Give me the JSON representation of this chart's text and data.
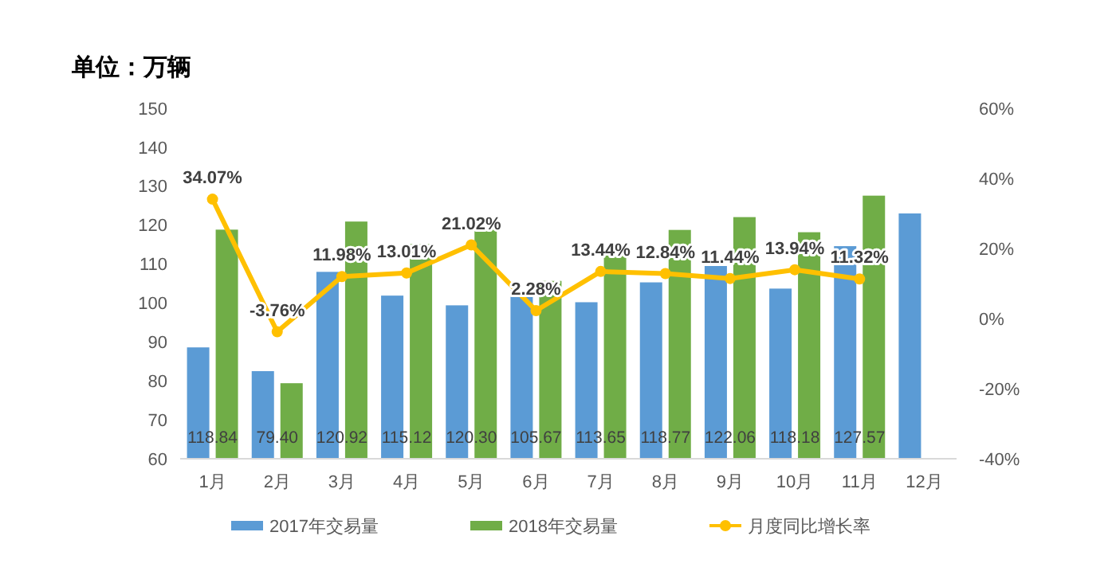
{
  "chart_data": {
    "type": "bar",
    "title": "单位：万辆",
    "categories": [
      "1月",
      "2月",
      "3月",
      "4月",
      "5月",
      "6月",
      "7月",
      "8月",
      "9月",
      "10月",
      "11月",
      "12月"
    ],
    "series": [
      {
        "name": "2017年交易量",
        "color": "#5b9bd5",
        "values": [
          88.6,
          82.5,
          108,
          101.9,
          99.4,
          103.3,
          100.2,
          105.3,
          109.5,
          103.7,
          114.6,
          123
        ]
      },
      {
        "name": "2018年交易量",
        "color": "#70ad47",
        "values": [
          118.84,
          79.4,
          120.92,
          115.12,
          120.3,
          105.67,
          113.65,
          118.77,
          122.06,
          118.18,
          127.57,
          null
        ],
        "value_labels": [
          "118.84",
          "79.40",
          "120.92",
          "115.12",
          "120.30",
          "105.67",
          "113.65",
          "118.77",
          "122.06",
          "118.18",
          "127.57",
          null
        ]
      },
      {
        "name": "月度同比增长率",
        "type": "line",
        "axis": "y2",
        "color": "#ffc000",
        "values": [
          34.07,
          -3.76,
          11.98,
          13.01,
          21.02,
          2.28,
          13.44,
          12.84,
          11.44,
          13.94,
          11.32,
          null
        ],
        "value_labels": [
          "34.07%",
          "-3.76%",
          "11.98%",
          "13.01%",
          "21.02%",
          "2.28%",
          "13.44%",
          "12.84%",
          "11.44%",
          "13.94%",
          "11.32%",
          null
        ]
      }
    ],
    "ylim": [
      60,
      150
    ],
    "yticks": [
      60,
      70,
      80,
      90,
      100,
      110,
      120,
      130,
      140,
      150
    ],
    "y2lim": [
      -40,
      60
    ],
    "y2ticks": [
      {
        "value": -40,
        "label": "-40%"
      },
      {
        "value": -20,
        "label": "-20%"
      },
      {
        "value": 0,
        "label": "0%"
      },
      {
        "value": 20,
        "label": "20%"
      },
      {
        "value": 40,
        "label": "40%"
      },
      {
        "value": 60,
        "label": "60%"
      }
    ],
    "marker": "circle",
    "legend": "bottom",
    "grid": false
  }
}
